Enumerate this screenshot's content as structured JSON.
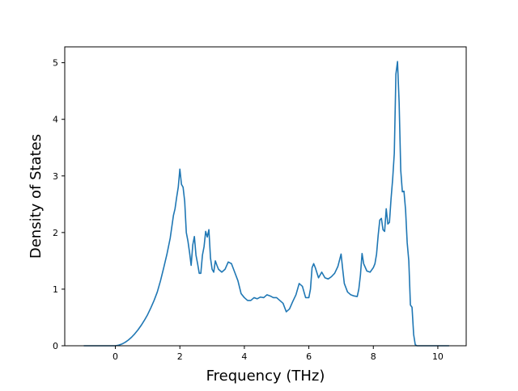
{
  "chart_data": {
    "type": "line",
    "title": "",
    "xlabel": "Frequency (THz)",
    "ylabel": "Density of States",
    "xlim": [
      -1.57,
      10.88
    ],
    "ylim": [
      0,
      5.28
    ],
    "xticks": [
      0,
      2,
      4,
      6,
      8,
      10
    ],
    "yticks": [
      0,
      1,
      2,
      3,
      4,
      5
    ],
    "grid": false,
    "legend": "none",
    "series": [
      {
        "color": "#1f77b4",
        "x": [
          -0.98,
          -0.5,
          0.0,
          0.1,
          0.2,
          0.3,
          0.4,
          0.5,
          0.6,
          0.7,
          0.8,
          0.9,
          1.0,
          1.1,
          1.2,
          1.3,
          1.4,
          1.5,
          1.6,
          1.7,
          1.8,
          1.85,
          1.9,
          1.95,
          2.0,
          2.05,
          2.1,
          2.15,
          2.2,
          2.25,
          2.3,
          2.35,
          2.4,
          2.45,
          2.5,
          2.55,
          2.6,
          2.65,
          2.7,
          2.75,
          2.8,
          2.85,
          2.9,
          2.95,
          3.0,
          3.05,
          3.1,
          3.15,
          3.2,
          3.3,
          3.4,
          3.5,
          3.6,
          3.7,
          3.8,
          3.9,
          4.0,
          4.1,
          4.2,
          4.3,
          4.4,
          4.5,
          4.6,
          4.7,
          4.8,
          4.9,
          5.0,
          5.1,
          5.2,
          5.3,
          5.4,
          5.5,
          5.6,
          5.7,
          5.8,
          5.9,
          6.0,
          6.05,
          6.1,
          6.15,
          6.2,
          6.3,
          6.4,
          6.5,
          6.6,
          6.7,
          6.8,
          6.9,
          7.0,
          7.05,
          7.1,
          7.2,
          7.3,
          7.4,
          7.5,
          7.55,
          7.6,
          7.65,
          7.7,
          7.8,
          7.9,
          8.0,
          8.05,
          8.1,
          8.15,
          8.2,
          8.25,
          8.3,
          8.35,
          8.4,
          8.45,
          8.5,
          8.55,
          8.6,
          8.65,
          8.7,
          8.75,
          8.8,
          8.85,
          8.9,
          8.95,
          9.0,
          9.05,
          9.1,
          9.15,
          9.2,
          9.25,
          9.3,
          9.35,
          9.4,
          9.5,
          10.35
        ],
        "y": [
          0.0,
          0.0,
          0.0,
          0.01,
          0.03,
          0.06,
          0.1,
          0.15,
          0.21,
          0.28,
          0.36,
          0.45,
          0.55,
          0.67,
          0.8,
          0.95,
          1.15,
          1.38,
          1.62,
          1.9,
          2.3,
          2.42,
          2.62,
          2.8,
          3.12,
          2.85,
          2.8,
          2.55,
          2.0,
          1.85,
          1.65,
          1.42,
          1.78,
          1.93,
          1.6,
          1.45,
          1.28,
          1.28,
          1.6,
          1.75,
          2.02,
          1.92,
          2.05,
          1.55,
          1.35,
          1.3,
          1.5,
          1.42,
          1.35,
          1.3,
          1.35,
          1.48,
          1.45,
          1.3,
          1.15,
          0.92,
          0.85,
          0.8,
          0.8,
          0.85,
          0.83,
          0.86,
          0.85,
          0.9,
          0.88,
          0.85,
          0.85,
          0.8,
          0.75,
          0.6,
          0.65,
          0.78,
          0.9,
          1.1,
          1.05,
          0.85,
          0.85,
          1.0,
          1.38,
          1.45,
          1.38,
          1.2,
          1.3,
          1.2,
          1.18,
          1.22,
          1.28,
          1.4,
          1.62,
          1.35,
          1.1,
          0.95,
          0.9,
          0.88,
          0.87,
          1.0,
          1.25,
          1.63,
          1.45,
          1.32,
          1.3,
          1.38,
          1.45,
          1.62,
          1.95,
          2.22,
          2.25,
          2.05,
          2.02,
          2.42,
          2.15,
          2.18,
          2.6,
          2.95,
          3.4,
          4.8,
          5.02,
          4.3,
          3.1,
          2.72,
          2.73,
          2.4,
          1.82,
          1.5,
          0.72,
          0.68,
          0.2,
          0.02,
          0.0,
          0.0,
          0.0,
          0.0
        ]
      }
    ]
  }
}
